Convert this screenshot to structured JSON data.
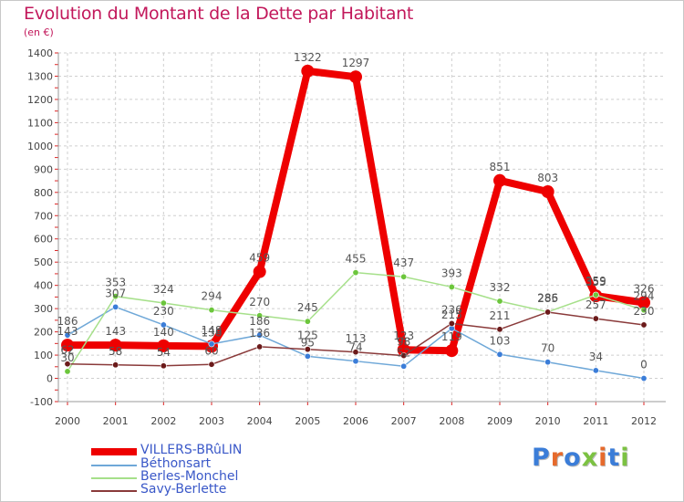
{
  "header": {
    "title": "Evolution du Montant de la Dette par Habitant",
    "unit": "(en €)"
  },
  "logo": {
    "text": "Proxiti",
    "colors": [
      "#3b7dd8",
      "#e66a2c",
      "#3b7dd8",
      "#7cc242",
      "#e66a2c",
      "#3b7dd8",
      "#7cc242"
    ]
  },
  "chart_data": {
    "type": "line",
    "title": "Evolution du Montant de la Dette par Habitant",
    "ylabel": "(en €)",
    "xlabel": "",
    "x": [
      "2000",
      "2001",
      "2002",
      "2003",
      "2004",
      "2005",
      "2006",
      "2007",
      "2008",
      "2009",
      "2010",
      "2011",
      "2012"
    ],
    "ylim": [
      -100,
      1400
    ],
    "yticks": [
      -100,
      0,
      100,
      200,
      300,
      400,
      500,
      600,
      700,
      800,
      900,
      1000,
      1100,
      1200,
      1300,
      1400
    ],
    "grid": true,
    "legend_position": "bottom-left",
    "series": [
      {
        "name": "VILLERS-BRûLIN",
        "color": "#ee0000",
        "marker_color": "#ee0000",
        "width": 8,
        "values": [
          143,
          143,
          140,
          138,
          459,
          1322,
          1297,
          123,
          119,
          851,
          803,
          355,
          326
        ],
        "labels": [
          "143",
          "143",
          "140",
          "138",
          "459",
          "1322",
          "1297",
          "123",
          "119",
          "851",
          "803",
          "355",
          "326"
        ]
      },
      {
        "name": "Béthonsart",
        "color": "#6fa8d8",
        "marker_color": "#3b7dd8",
        "width": 1.5,
        "values": [
          186,
          307,
          230,
          148,
          186,
          95,
          74,
          52,
          215,
          103,
          70,
          34,
          0
        ],
        "labels": [
          "186",
          "307",
          "230",
          "148",
          "186",
          "95",
          "74",
          "52",
          "215",
          "103",
          "70",
          "34",
          "0"
        ]
      },
      {
        "name": "Berles-Monchel",
        "color": "#a6e08a",
        "marker_color": "#6cc63c",
        "width": 1.5,
        "values": [
          30,
          353,
          324,
          294,
          270,
          245,
          455,
          437,
          393,
          332,
          286,
          359,
          294
        ],
        "labels": [
          "30",
          "353",
          "324",
          "294",
          "270",
          "245",
          "455",
          "437",
          "393",
          "332",
          "286",
          "359",
          "294"
        ]
      },
      {
        "name": "Savy-Berlette",
        "color": "#8a3a3a",
        "marker_color": "#6b1a1a",
        "width": 1.5,
        "values": [
          62,
          58,
          54,
          60,
          136,
          125,
          113,
          98,
          236,
          211,
          285,
          257,
          230
        ],
        "labels": [
          "62",
          "58",
          "54",
          "60",
          "136",
          "125",
          "113",
          "98",
          "236",
          "211",
          "285",
          "257",
          "230"
        ]
      }
    ]
  }
}
